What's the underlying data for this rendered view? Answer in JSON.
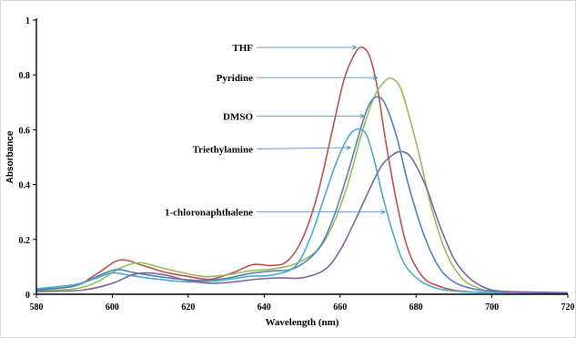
{
  "chart_data": {
    "type": "line",
    "title": "",
    "xlabel": "Wavelength (nm)",
    "ylabel": "Absorbance",
    "xlim": [
      580,
      720
    ],
    "ylim": [
      0,
      1
    ],
    "xticks": [
      580,
      600,
      620,
      640,
      660,
      680,
      700,
      720
    ],
    "yticks": [
      0,
      0.2,
      0.4,
      0.6,
      0.8,
      1
    ],
    "ytick_labels": [
      "0",
      "0.2",
      "0.4",
      "0.6",
      "0.8",
      "1"
    ],
    "grid": false,
    "legend": "none",
    "series": [
      {
        "name": "THF",
        "color": "#c0504d",
        "x": [
          580,
          590,
          596,
          602,
          608,
          614,
          620,
          626,
          632,
          637,
          642,
          646,
          650,
          654,
          658,
          661,
          664,
          666,
          668,
          670,
          672,
          675,
          678,
          682,
          686,
          690,
          695,
          700,
          710,
          720
        ],
        "y": [
          0.018,
          0.03,
          0.075,
          0.125,
          0.105,
          0.08,
          0.065,
          0.055,
          0.08,
          0.108,
          0.105,
          0.12,
          0.2,
          0.36,
          0.6,
          0.78,
          0.88,
          0.9,
          0.86,
          0.74,
          0.56,
          0.33,
          0.16,
          0.06,
          0.03,
          0.015,
          0.008,
          0.006,
          0.005,
          0.005
        ]
      },
      {
        "name": "Pyridine",
        "color": "#9bbb59",
        "x": [
          580,
          590,
          596,
          602,
          607,
          612,
          618,
          624,
          630,
          636,
          642,
          648,
          654,
          658,
          662,
          666,
          669,
          672,
          674,
          676,
          678,
          681,
          684,
          688,
          692,
          696,
          700,
          710,
          720
        ],
        "y": [
          0.012,
          0.02,
          0.045,
          0.095,
          0.115,
          0.1,
          0.08,
          0.065,
          0.07,
          0.085,
          0.092,
          0.11,
          0.16,
          0.25,
          0.4,
          0.6,
          0.72,
          0.78,
          0.785,
          0.75,
          0.66,
          0.5,
          0.32,
          0.15,
          0.06,
          0.025,
          0.012,
          0.006,
          0.005
        ]
      },
      {
        "name": "DMSO",
        "color": "#4f81bd",
        "x": [
          580,
          590,
          596,
          601,
          606,
          612,
          618,
          624,
          630,
          636,
          642,
          648,
          654,
          658,
          662,
          666,
          668,
          670,
          672,
          675,
          678,
          682,
          686,
          690,
          695,
          700,
          710,
          720
        ],
        "y": [
          0.015,
          0.03,
          0.065,
          0.09,
          0.078,
          0.065,
          0.055,
          0.05,
          0.058,
          0.075,
          0.085,
          0.095,
          0.16,
          0.27,
          0.44,
          0.63,
          0.7,
          0.72,
          0.69,
          0.57,
          0.4,
          0.22,
          0.1,
          0.045,
          0.02,
          0.012,
          0.008,
          0.006
        ]
      },
      {
        "name": "Triethylamine",
        "color": "#4bacc6",
        "x": [
          580,
          590,
          596,
          600,
          605,
          612,
          620,
          628,
          636,
          642,
          648,
          652,
          656,
          659,
          662,
          664,
          665.5,
          667,
          669,
          671,
          674,
          677,
          681,
          686,
          692,
          700,
          710,
          720
        ],
        "y": [
          0.02,
          0.035,
          0.06,
          0.078,
          0.068,
          0.055,
          0.045,
          0.05,
          0.065,
          0.07,
          0.1,
          0.2,
          0.36,
          0.48,
          0.57,
          0.6,
          0.6,
          0.58,
          0.49,
          0.37,
          0.22,
          0.11,
          0.05,
          0.02,
          0.01,
          0.006,
          0.005,
          0.005
        ]
      },
      {
        "name": "1-chloronaphthalene",
        "color": "#8064a2",
        "x": [
          580,
          592,
          600,
          605,
          609,
          614,
          620,
          626,
          632,
          638,
          644,
          650,
          656,
          660,
          664,
          668,
          671,
          674,
          676,
          678,
          680,
          683,
          686,
          690,
          694,
          698,
          702,
          710,
          720
        ],
        "y": [
          0.01,
          0.015,
          0.04,
          0.07,
          0.078,
          0.07,
          0.05,
          0.04,
          0.045,
          0.055,
          0.06,
          0.06,
          0.09,
          0.16,
          0.27,
          0.39,
          0.47,
          0.51,
          0.52,
          0.51,
          0.47,
          0.38,
          0.26,
          0.13,
          0.06,
          0.025,
          0.012,
          0.007,
          0.005
        ]
      }
    ],
    "annotations": [
      {
        "text": "THF",
        "series": "THF",
        "arrow_to": [
          665.5,
          0.9
        ],
        "text_at": [
          0.9
        ]
      },
      {
        "text": "Pyridine",
        "series": "Pyridine",
        "arrow_to": [
          671,
          0.79
        ],
        "text_at": [
          0.79
        ]
      },
      {
        "text": "DMSO",
        "series": "DMSO",
        "arrow_to": [
          667.5,
          0.65
        ],
        "text_at": [
          0.65
        ]
      },
      {
        "text": "Triethylamine",
        "series": "Triethylamine",
        "arrow_to": [
          664,
          0.535
        ],
        "text_at": [
          0.53
        ]
      },
      {
        "text": "1-chloronaphthalene",
        "series": "1-chloronaphthalene",
        "arrow_to": [
          673,
          0.3
        ],
        "text_at": [
          0.3
        ]
      }
    ]
  }
}
